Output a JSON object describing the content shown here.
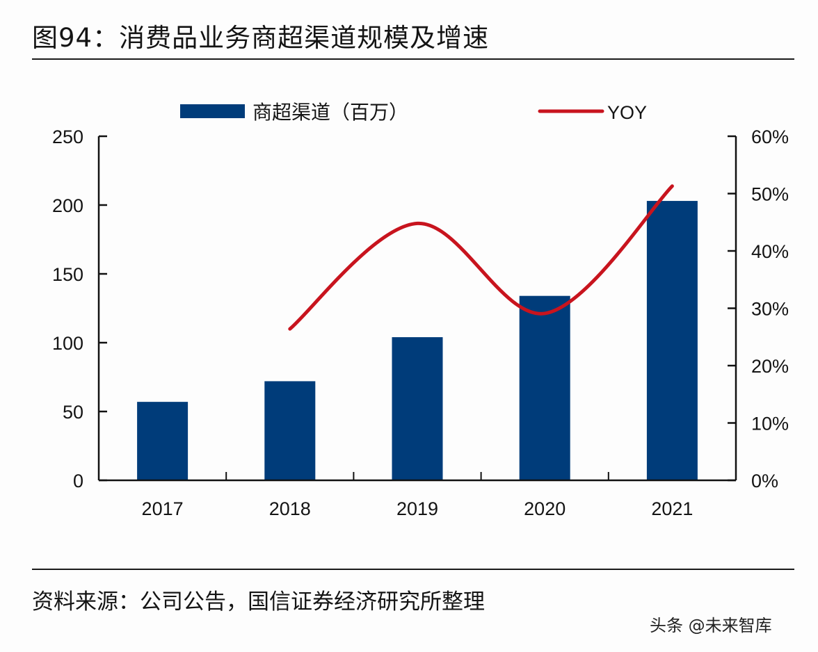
{
  "header": {
    "title": "图94：消费品业务商超渠道规模及增速"
  },
  "footer": {
    "source": "资料来源：公司公告，国信证券经济研究所整理",
    "watermark": "头条 @未来智库"
  },
  "colors": {
    "bar": "#003c7a",
    "line": "#c8141e",
    "axis": "#111111"
  },
  "chart_data": {
    "type": "bar+line",
    "title": "消费品业务商超渠道规模及增速",
    "categories": [
      "2017",
      "2018",
      "2019",
      "2020",
      "2021"
    ],
    "series": [
      {
        "name": "商超渠道（百万）",
        "type": "bar",
        "axis": "left",
        "values": [
          57,
          72,
          104,
          134,
          203
        ]
      },
      {
        "name": "YOY",
        "type": "line",
        "axis": "right",
        "smooth": true,
        "values": [
          null,
          0.264,
          0.448,
          0.291,
          0.513
        ]
      }
    ],
    "left_axis": {
      "ylim": [
        0,
        250
      ],
      "ticks": [
        0,
        50,
        100,
        150,
        200,
        250
      ],
      "tick_labels": [
        "0",
        "50",
        "100",
        "150",
        "200",
        "250"
      ]
    },
    "right_axis": {
      "ylim": [
        0,
        0.6
      ],
      "ticks": [
        0,
        0.1,
        0.2,
        0.3,
        0.4,
        0.5,
        0.6
      ],
      "tick_labels": [
        "0%",
        "10%",
        "20%",
        "30%",
        "40%",
        "50%",
        "60%"
      ]
    },
    "legend": {
      "position": "top",
      "entries": [
        "商超渠道（百万）",
        "YOY"
      ]
    },
    "grid": false,
    "xlabel": "",
    "ylabel": ""
  }
}
